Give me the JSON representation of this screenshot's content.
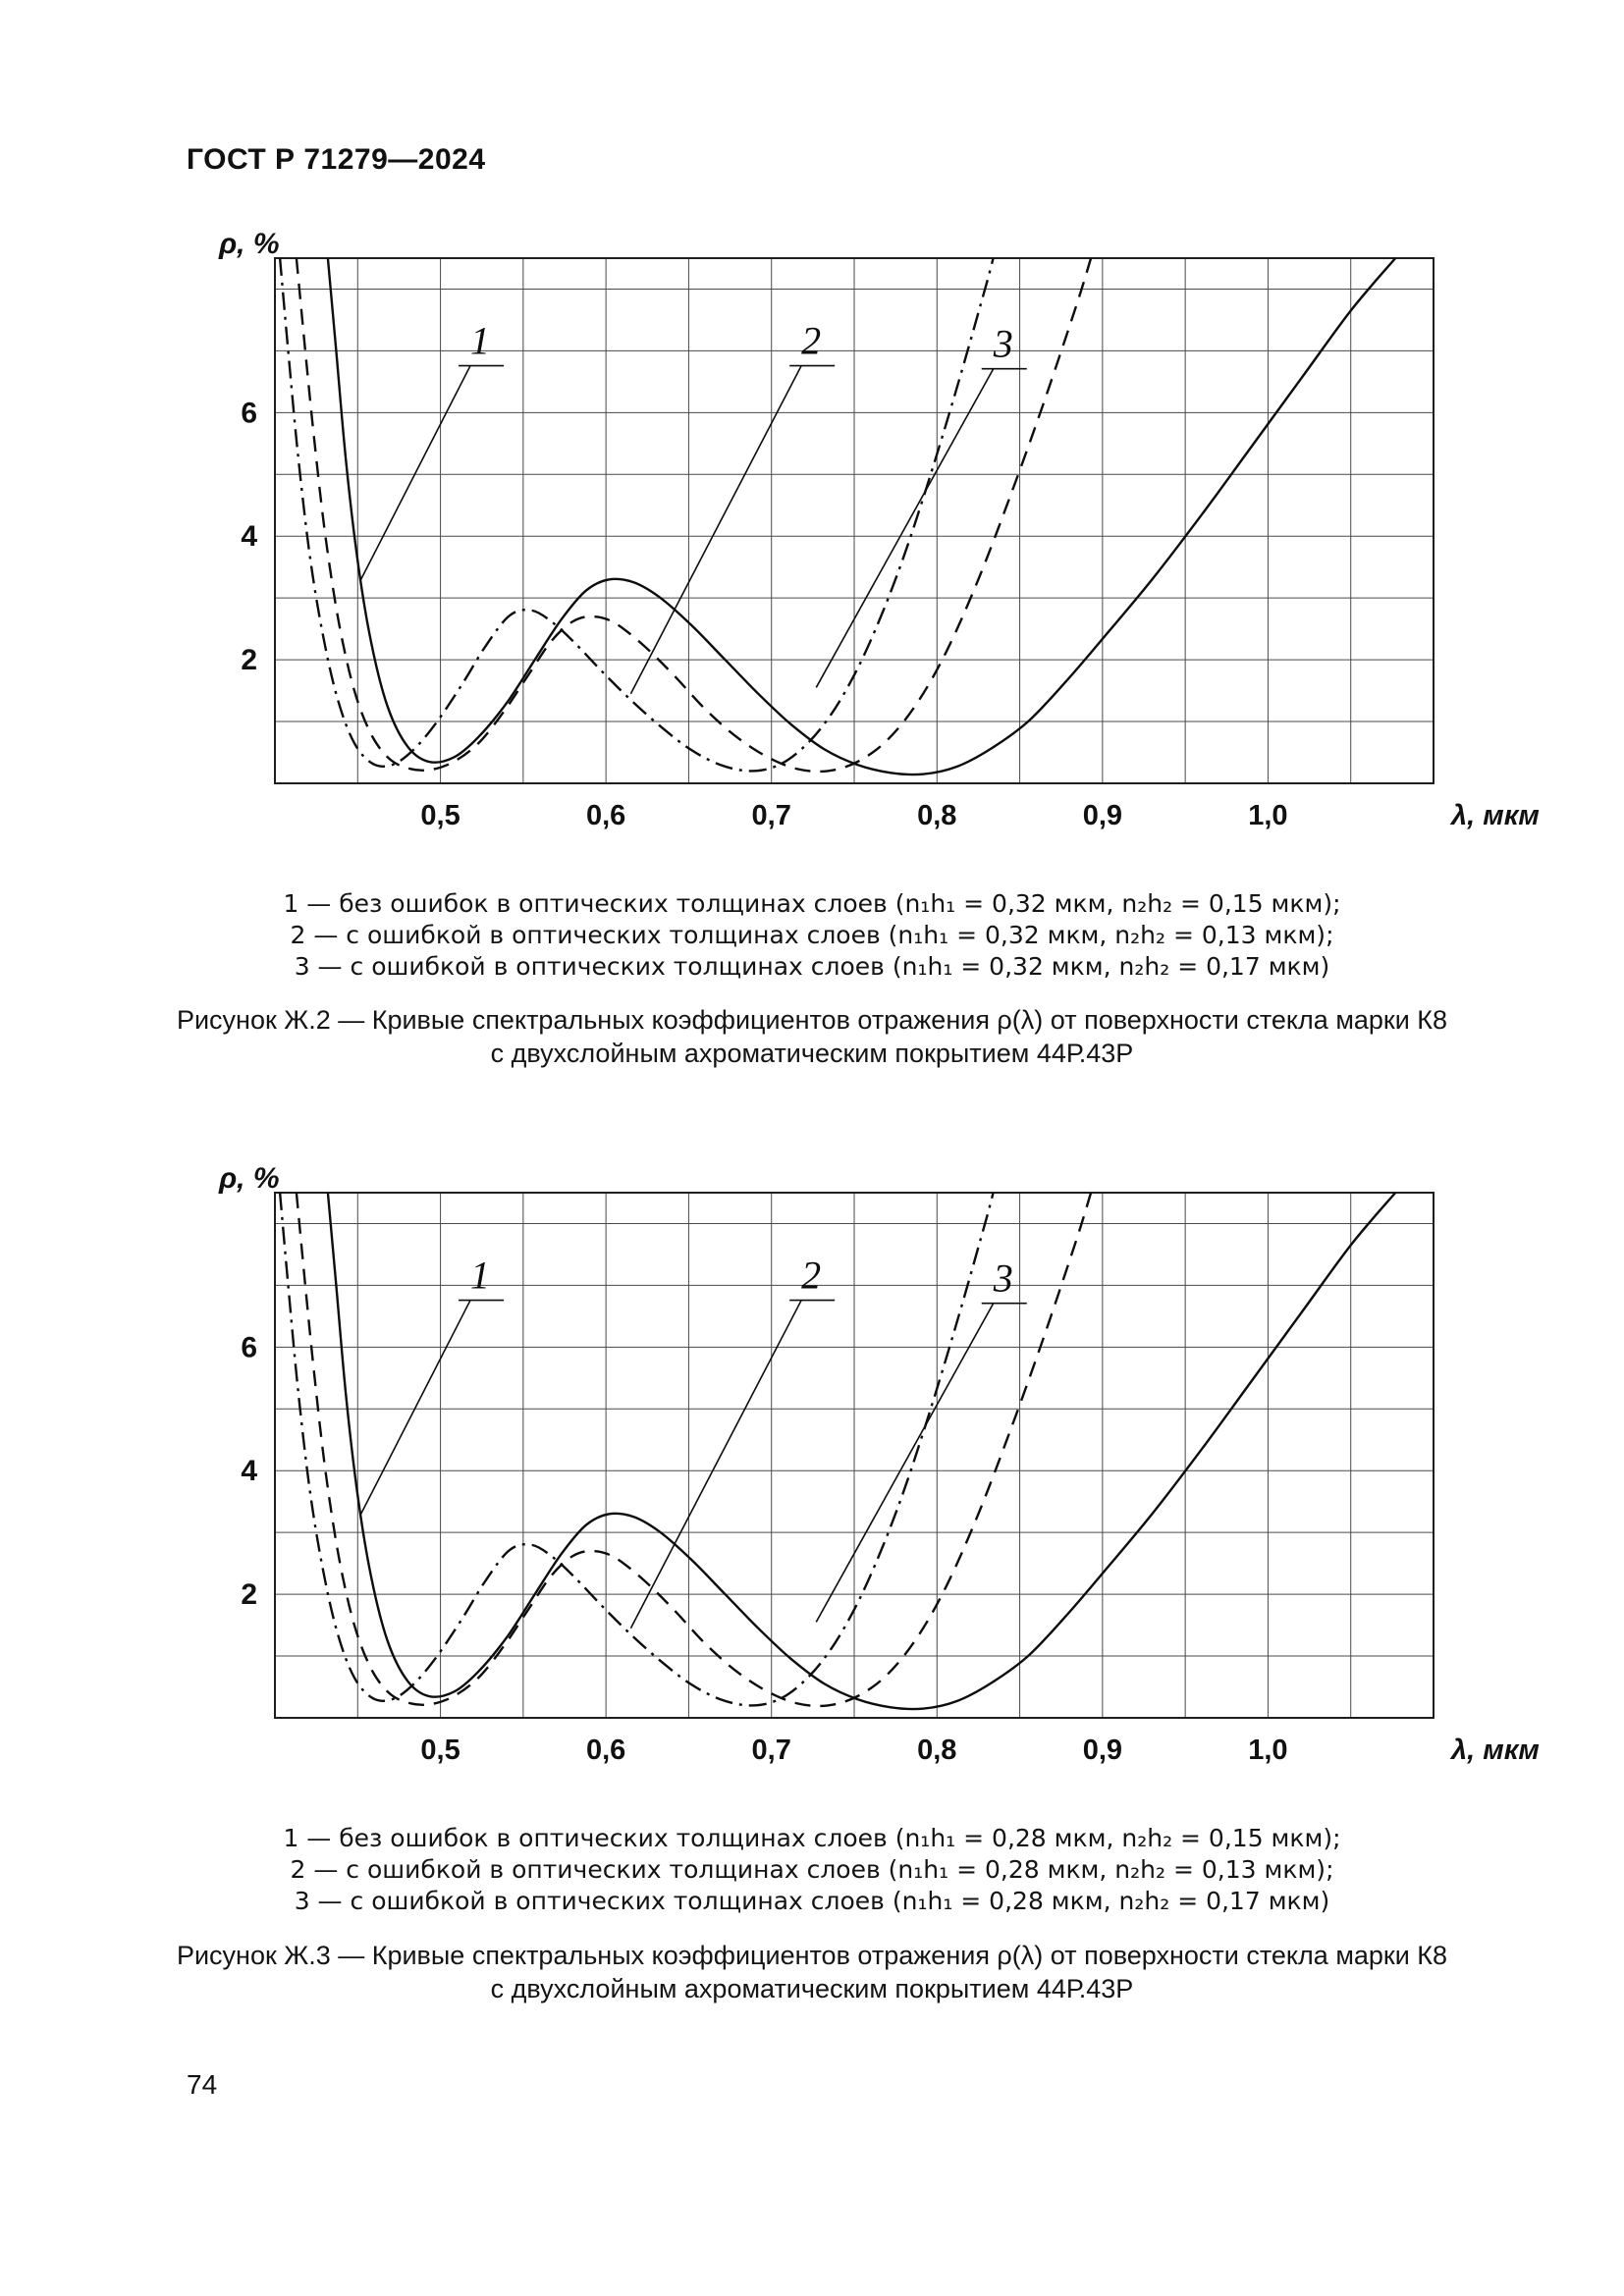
{
  "page": {
    "header": "ГОСТ Р 71279—2024",
    "page_number": "74"
  },
  "figures": [
    {
      "name": "Ж.2",
      "legend": [
        "1 — без ошибок в оптических толщинах слоев (n₁h₁ = 0,32 мкм, n₂h₂ = 0,15 мкм);",
        "2 — с ошибкой в оптических толщинах слоев (n₁h₁ = 0,32 мкм, n₂h₂ = 0,13 мкм);",
        "3 — с ошибкой в оптических толщинах слоев (n₁h₁ = 0,32 мкм, n₂h₂ = 0,17 мкм)"
      ],
      "caption_line1": "Рисунок Ж.2 — Кривые спектральных коэффициентов отражения ρ(λ) от поверхности стекла марки К8",
      "caption_line2": "с двухслойным ахроматическим покрытием 44Р.43Р"
    },
    {
      "name": "Ж.3",
      "legend": [
        "1 — без ошибок в оптических толщинах слоев (n₁h₁ = 0,28 мкм, n₂h₂ = 0,15 мкм);",
        "2 — с ошибкой в оптических толщинах слоев (n₁h₁ = 0,28 мкм, n₂h₂ = 0,13 мкм);",
        "3 — с ошибкой в оптических толщинах слоев (n₁h₁ = 0,28 мкм, n₂h₂ = 0,17 мкм)"
      ],
      "caption_line1": "Рисунок Ж.3 — Кривые спектральных коэффициентов отражения ρ(λ) от поверхности стекла марки К8",
      "caption_line2": "с двухслойным ахроматическим покрытием 44Р.43Р"
    }
  ],
  "chart_data": [
    {
      "type": "line",
      "title": "Рисунок Ж.2 — Кривые спектральных коэффициентов отражения ρ(λ) от поверхности стекла марки К8 с двухслойным ахроматическим покрытием 44Р.43Р",
      "xlabel": "λ, мкм",
      "ylabel": "ρ, %",
      "xlim": [
        0.4,
        1.1
      ],
      "ylim": [
        0,
        8.5
      ],
      "x_ticks": [
        0.5,
        0.6,
        0.7,
        0.8,
        0.9,
        1.0
      ],
      "x_tick_labels": [
        "0,5",
        "0,6",
        "0,7",
        "0,8",
        "0,9",
        "1,0"
      ],
      "y_ticks": [
        2,
        4,
        6
      ],
      "grid_x_step": 0.05,
      "grid_y_step": 1,
      "grid": true,
      "series": [
        {
          "name": "1",
          "style": "solid",
          "points": [
            [
              0.432,
              8.5
            ],
            [
              0.437,
              7.0
            ],
            [
              0.443,
              5.2
            ],
            [
              0.45,
              3.6
            ],
            [
              0.458,
              2.3
            ],
            [
              0.468,
              1.25
            ],
            [
              0.48,
              0.6
            ],
            [
              0.493,
              0.35
            ],
            [
              0.508,
              0.42
            ],
            [
              0.523,
              0.75
            ],
            [
              0.54,
              1.3
            ],
            [
              0.557,
              2.0
            ],
            [
              0.573,
              2.65
            ],
            [
              0.588,
              3.12
            ],
            [
              0.602,
              3.3
            ],
            [
              0.617,
              3.25
            ],
            [
              0.633,
              3.0
            ],
            [
              0.652,
              2.55
            ],
            [
              0.672,
              2.0
            ],
            [
              0.692,
              1.45
            ],
            [
              0.712,
              0.95
            ],
            [
              0.732,
              0.55
            ],
            [
              0.752,
              0.3
            ],
            [
              0.772,
              0.17
            ],
            [
              0.792,
              0.15
            ],
            [
              0.812,
              0.27
            ],
            [
              0.832,
              0.55
            ],
            [
              0.855,
              1.0
            ],
            [
              0.878,
              1.65
            ],
            [
              0.902,
              2.4
            ],
            [
              0.93,
              3.3
            ],
            [
              0.96,
              4.35
            ],
            [
              0.99,
              5.45
            ],
            [
              1.02,
              6.55
            ],
            [
              1.05,
              7.65
            ],
            [
              1.077,
              8.5
            ]
          ]
        },
        {
          "name": "2",
          "style": "dashdot",
          "points": [
            [
              0.403,
              8.5
            ],
            [
              0.408,
              7.0
            ],
            [
              0.414,
              5.3
            ],
            [
              0.421,
              3.7
            ],
            [
              0.429,
              2.4
            ],
            [
              0.438,
              1.35
            ],
            [
              0.448,
              0.65
            ],
            [
              0.459,
              0.32
            ],
            [
              0.471,
              0.3
            ],
            [
              0.484,
              0.55
            ],
            [
              0.498,
              1.0
            ],
            [
              0.513,
              1.6
            ],
            [
              0.528,
              2.25
            ],
            [
              0.542,
              2.72
            ],
            [
              0.555,
              2.8
            ],
            [
              0.568,
              2.6
            ],
            [
              0.582,
              2.25
            ],
            [
              0.598,
              1.8
            ],
            [
              0.615,
              1.35
            ],
            [
              0.633,
              0.92
            ],
            [
              0.651,
              0.55
            ],
            [
              0.669,
              0.3
            ],
            [
              0.687,
              0.2
            ],
            [
              0.703,
              0.28
            ],
            [
              0.718,
              0.55
            ],
            [
              0.733,
              1.0
            ],
            [
              0.748,
              1.65
            ],
            [
              0.763,
              2.5
            ],
            [
              0.779,
              3.6
            ],
            [
              0.795,
              4.9
            ],
            [
              0.812,
              6.4
            ],
            [
              0.829,
              8.0
            ],
            [
              0.834,
              8.5
            ]
          ]
        },
        {
          "name": "3",
          "style": "dash",
          "points": [
            [
              0.413,
              8.5
            ],
            [
              0.418,
              7.1
            ],
            [
              0.424,
              5.5
            ],
            [
              0.431,
              3.9
            ],
            [
              0.439,
              2.55
            ],
            [
              0.448,
              1.5
            ],
            [
              0.458,
              0.8
            ],
            [
              0.469,
              0.4
            ],
            [
              0.481,
              0.24
            ],
            [
              0.494,
              0.22
            ],
            [
              0.508,
              0.35
            ],
            [
              0.523,
              0.65
            ],
            [
              0.538,
              1.15
            ],
            [
              0.553,
              1.75
            ],
            [
              0.567,
              2.3
            ],
            [
              0.58,
              2.62
            ],
            [
              0.592,
              2.7
            ],
            [
              0.605,
              2.6
            ],
            [
              0.622,
              2.25
            ],
            [
              0.641,
              1.75
            ],
            [
              0.66,
              1.2
            ],
            [
              0.679,
              0.75
            ],
            [
              0.698,
              0.42
            ],
            [
              0.716,
              0.23
            ],
            [
              0.734,
              0.2
            ],
            [
              0.752,
              0.35
            ],
            [
              0.77,
              0.7
            ],
            [
              0.788,
              1.3
            ],
            [
              0.806,
              2.15
            ],
            [
              0.825,
              3.3
            ],
            [
              0.845,
              4.7
            ],
            [
              0.865,
              6.2
            ],
            [
              0.885,
              7.8
            ],
            [
              0.893,
              8.5
            ]
          ]
        }
      ],
      "curve_labels": [
        {
          "text": "1",
          "x": 0.524,
          "y": 6.95,
          "tip_x": 0.452,
          "tip_y": 3.3
        },
        {
          "text": "2",
          "x": 0.724,
          "y": 6.95,
          "tip_x": 0.615,
          "tip_y": 1.45
        },
        {
          "text": "3",
          "x": 0.84,
          "y": 6.9,
          "tip_x": 0.727,
          "tip_y": 1.55
        }
      ]
    },
    {
      "type": "line",
      "title": "Рисунок Ж.3 — Кривые спектральных коэффициентов отражения ρ(λ) от поверхности стекла марки К8 с двухслойным ахроматическим покрытием 44Р.43Р",
      "xlabel": "λ, мкм",
      "ylabel": "ρ, %",
      "xlim": [
        0.4,
        1.1
      ],
      "ylim": [
        0,
        8.5
      ],
      "x_ticks": [
        0.5,
        0.6,
        0.7,
        0.8,
        0.9,
        1.0
      ],
      "x_tick_labels": [
        "0,5",
        "0,6",
        "0,7",
        "0,8",
        "0,9",
        "1,0"
      ],
      "y_ticks": [
        2,
        4,
        6
      ],
      "grid_x_step": 0.05,
      "grid_y_step": 1,
      "grid": true,
      "series": [
        {
          "name": "1",
          "style": "solid",
          "points": [
            [
              0.432,
              8.5
            ],
            [
              0.437,
              7.0
            ],
            [
              0.443,
              5.2
            ],
            [
              0.45,
              3.6
            ],
            [
              0.458,
              2.3
            ],
            [
              0.468,
              1.25
            ],
            [
              0.48,
              0.6
            ],
            [
              0.493,
              0.35
            ],
            [
              0.508,
              0.42
            ],
            [
              0.523,
              0.75
            ],
            [
              0.54,
              1.3
            ],
            [
              0.557,
              2.0
            ],
            [
              0.573,
              2.65
            ],
            [
              0.588,
              3.12
            ],
            [
              0.602,
              3.3
            ],
            [
              0.617,
              3.25
            ],
            [
              0.633,
              3.0
            ],
            [
              0.652,
              2.55
            ],
            [
              0.672,
              2.0
            ],
            [
              0.692,
              1.45
            ],
            [
              0.712,
              0.95
            ],
            [
              0.732,
              0.55
            ],
            [
              0.752,
              0.3
            ],
            [
              0.772,
              0.17
            ],
            [
              0.792,
              0.15
            ],
            [
              0.812,
              0.27
            ],
            [
              0.832,
              0.55
            ],
            [
              0.855,
              1.0
            ],
            [
              0.878,
              1.65
            ],
            [
              0.902,
              2.4
            ],
            [
              0.93,
              3.3
            ],
            [
              0.96,
              4.35
            ],
            [
              0.99,
              5.45
            ],
            [
              1.02,
              6.55
            ],
            [
              1.05,
              7.65
            ],
            [
              1.077,
              8.5
            ]
          ]
        },
        {
          "name": "2",
          "style": "dashdot",
          "points": [
            [
              0.403,
              8.5
            ],
            [
              0.408,
              7.0
            ],
            [
              0.414,
              5.3
            ],
            [
              0.421,
              3.7
            ],
            [
              0.429,
              2.4
            ],
            [
              0.438,
              1.35
            ],
            [
              0.448,
              0.65
            ],
            [
              0.459,
              0.32
            ],
            [
              0.471,
              0.3
            ],
            [
              0.484,
              0.55
            ],
            [
              0.498,
              1.0
            ],
            [
              0.513,
              1.6
            ],
            [
              0.528,
              2.25
            ],
            [
              0.542,
              2.72
            ],
            [
              0.555,
              2.8
            ],
            [
              0.568,
              2.6
            ],
            [
              0.582,
              2.25
            ],
            [
              0.598,
              1.8
            ],
            [
              0.615,
              1.35
            ],
            [
              0.633,
              0.92
            ],
            [
              0.651,
              0.55
            ],
            [
              0.669,
              0.3
            ],
            [
              0.687,
              0.2
            ],
            [
              0.703,
              0.28
            ],
            [
              0.718,
              0.55
            ],
            [
              0.733,
              1.0
            ],
            [
              0.748,
              1.65
            ],
            [
              0.763,
              2.5
            ],
            [
              0.779,
              3.6
            ],
            [
              0.795,
              4.9
            ],
            [
              0.812,
              6.4
            ],
            [
              0.829,
              8.0
            ],
            [
              0.834,
              8.5
            ]
          ]
        },
        {
          "name": "3",
          "style": "dash",
          "points": [
            [
              0.413,
              8.5
            ],
            [
              0.418,
              7.1
            ],
            [
              0.424,
              5.5
            ],
            [
              0.431,
              3.9
            ],
            [
              0.439,
              2.55
            ],
            [
              0.448,
              1.5
            ],
            [
              0.458,
              0.8
            ],
            [
              0.469,
              0.4
            ],
            [
              0.481,
              0.24
            ],
            [
              0.494,
              0.22
            ],
            [
              0.508,
              0.35
            ],
            [
              0.523,
              0.65
            ],
            [
              0.538,
              1.15
            ],
            [
              0.553,
              1.75
            ],
            [
              0.567,
              2.3
            ],
            [
              0.58,
              2.62
            ],
            [
              0.592,
              2.7
            ],
            [
              0.605,
              2.6
            ],
            [
              0.622,
              2.25
            ],
            [
              0.641,
              1.75
            ],
            [
              0.66,
              1.2
            ],
            [
              0.679,
              0.75
            ],
            [
              0.698,
              0.42
            ],
            [
              0.716,
              0.23
            ],
            [
              0.734,
              0.2
            ],
            [
              0.752,
              0.35
            ],
            [
              0.77,
              0.7
            ],
            [
              0.788,
              1.3
            ],
            [
              0.806,
              2.15
            ],
            [
              0.825,
              3.3
            ],
            [
              0.845,
              4.7
            ],
            [
              0.865,
              6.2
            ],
            [
              0.885,
              7.8
            ],
            [
              0.893,
              8.5
            ]
          ]
        }
      ],
      "curve_labels": [
        {
          "text": "1",
          "x": 0.524,
          "y": 6.95,
          "tip_x": 0.452,
          "tip_y": 3.3
        },
        {
          "text": "2",
          "x": 0.724,
          "y": 6.95,
          "tip_x": 0.615,
          "tip_y": 1.45
        },
        {
          "text": "3",
          "x": 0.84,
          "y": 6.9,
          "tip_x": 0.727,
          "tip_y": 1.55
        }
      ]
    }
  ]
}
